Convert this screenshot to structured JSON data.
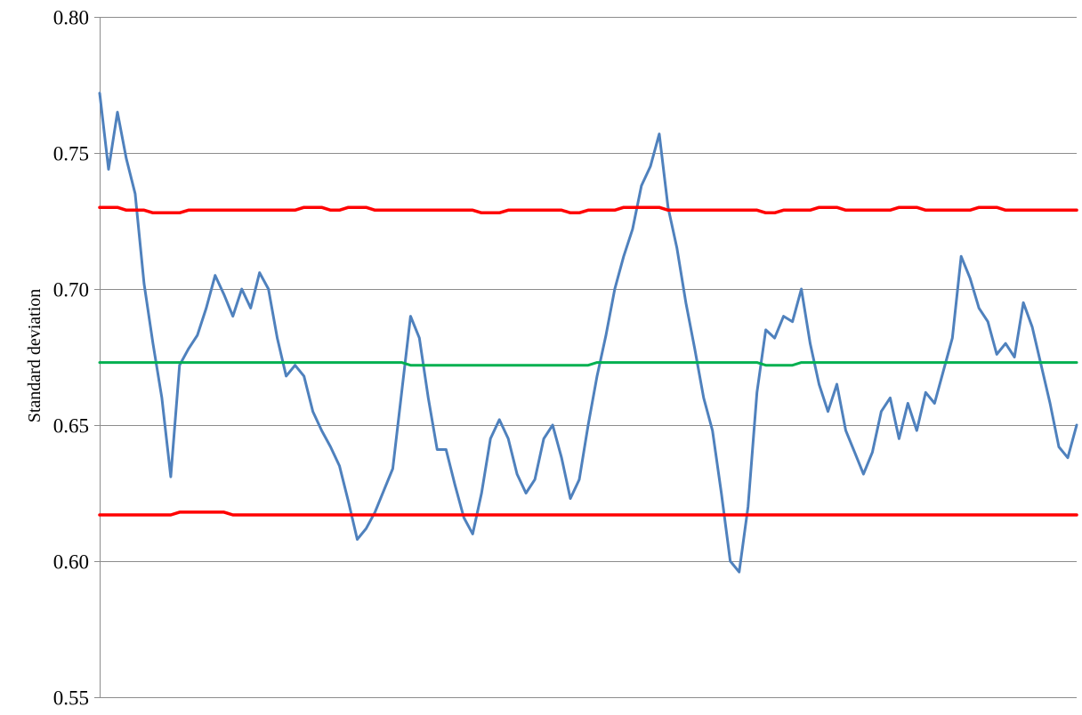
{
  "chart_data": {
    "type": "line",
    "title": "",
    "xlabel": "",
    "ylabel": "Standard deviation",
    "ylim": [
      0.55,
      0.8
    ],
    "yticks": [
      "0.80",
      "0.75",
      "0.70",
      "0.65",
      "0.60",
      "0.55"
    ],
    "grid": "horizontal",
    "legend": "none",
    "x": [
      0,
      10,
      20,
      30,
      40,
      50,
      60,
      70,
      80,
      90,
      100,
      110,
      120,
      130,
      140,
      150,
      160,
      170,
      180,
      190,
      200,
      210,
      220,
      230,
      240,
      250,
      260,
      270,
      280,
      290,
      300,
      310,
      320,
      330,
      340,
      350,
      360,
      370,
      380,
      390,
      400,
      410,
      420,
      430,
      440,
      450,
      460,
      470,
      480,
      490,
      500,
      510,
      520,
      530,
      540,
      550,
      560,
      570,
      580,
      590,
      600,
      610,
      620,
      630,
      640,
      650,
      660,
      670,
      680,
      690,
      700,
      710,
      720,
      730,
      740,
      750,
      760,
      770,
      780,
      790,
      800,
      810,
      820,
      830,
      840,
      850,
      860,
      870,
      880,
      890,
      900,
      910,
      920,
      930,
      940,
      950,
      960,
      970,
      980,
      990,
      1000,
      1010,
      1020,
      1030,
      1040,
      1050,
      1060,
      1070,
      1080,
      1090,
      1100
    ],
    "series": [
      {
        "color": "#4f81bd",
        "values": [
          0.772,
          0.744,
          0.765,
          0.748,
          0.735,
          0.702,
          0.68,
          0.66,
          0.631,
          0.672,
          0.678,
          0.683,
          0.693,
          0.705,
          0.698,
          0.69,
          0.7,
          0.693,
          0.706,
          0.7,
          0.682,
          0.668,
          0.672,
          0.668,
          0.655,
          0.648,
          0.642,
          0.635,
          0.622,
          0.608,
          0.612,
          0.618,
          0.626,
          0.634,
          0.662,
          0.69,
          0.682,
          0.66,
          0.641,
          0.641,
          0.628,
          0.616,
          0.61,
          0.625,
          0.645,
          0.652,
          0.645,
          0.632,
          0.625,
          0.63,
          0.645,
          0.65,
          0.638,
          0.623,
          0.63,
          0.65,
          0.668,
          0.683,
          0.7,
          0.712,
          0.722,
          0.738,
          0.745,
          0.757,
          0.73,
          0.715,
          0.695,
          0.678,
          0.66,
          0.648,
          0.625,
          0.6,
          0.596,
          0.62,
          0.662,
          0.685,
          0.682,
          0.69,
          0.688,
          0.7,
          0.68,
          0.665,
          0.655,
          0.665,
          0.648,
          0.64,
          0.632,
          0.64,
          0.655,
          0.66,
          0.645,
          0.658,
          0.648,
          0.662,
          0.658,
          0.67,
          0.682,
          0.712,
          0.704,
          0.693,
          0.688,
          0.676,
          0.68,
          0.675,
          0.695,
          0.686,
          0.672,
          0.658,
          0.642,
          0.638,
          0.65
        ]
      },
      {
        "color": "#ff0000",
        "values": [
          0.73,
          0.73,
          0.73,
          0.729,
          0.729,
          0.729,
          0.728,
          0.728,
          0.728,
          0.728,
          0.729,
          0.729,
          0.729,
          0.729,
          0.729,
          0.729,
          0.729,
          0.729,
          0.729,
          0.729,
          0.729,
          0.729,
          0.729,
          0.73,
          0.73,
          0.73,
          0.729,
          0.729,
          0.73,
          0.73,
          0.73,
          0.729,
          0.729,
          0.729,
          0.729,
          0.729,
          0.729,
          0.729,
          0.729,
          0.729,
          0.729,
          0.729,
          0.729,
          0.728,
          0.728,
          0.728,
          0.729,
          0.729,
          0.729,
          0.729,
          0.729,
          0.729,
          0.729,
          0.728,
          0.728,
          0.729,
          0.729,
          0.729,
          0.729,
          0.73,
          0.73,
          0.73,
          0.73,
          0.73,
          0.729,
          0.729,
          0.729,
          0.729,
          0.729,
          0.729,
          0.729,
          0.729,
          0.729,
          0.729,
          0.729,
          0.728,
          0.728,
          0.729,
          0.729,
          0.729,
          0.729,
          0.73,
          0.73,
          0.73,
          0.729,
          0.729,
          0.729,
          0.729,
          0.729,
          0.729,
          0.73,
          0.73,
          0.73,
          0.729,
          0.729,
          0.729,
          0.729,
          0.729,
          0.729,
          0.73,
          0.73,
          0.73,
          0.729,
          0.729,
          0.729,
          0.729,
          0.729,
          0.729,
          0.729,
          0.729,
          0.729
        ]
      },
      {
        "color": "#00b050",
        "values": [
          0.673,
          0.673,
          0.673,
          0.673,
          0.673,
          0.673,
          0.673,
          0.673,
          0.673,
          0.673,
          0.673,
          0.673,
          0.673,
          0.673,
          0.673,
          0.673,
          0.673,
          0.673,
          0.673,
          0.673,
          0.673,
          0.673,
          0.673,
          0.673,
          0.673,
          0.673,
          0.673,
          0.673,
          0.673,
          0.673,
          0.673,
          0.673,
          0.673,
          0.673,
          0.673,
          0.672,
          0.672,
          0.672,
          0.672,
          0.672,
          0.672,
          0.672,
          0.672,
          0.672,
          0.672,
          0.672,
          0.672,
          0.672,
          0.672,
          0.672,
          0.672,
          0.672,
          0.672,
          0.672,
          0.672,
          0.672,
          0.673,
          0.673,
          0.673,
          0.673,
          0.673,
          0.673,
          0.673,
          0.673,
          0.673,
          0.673,
          0.673,
          0.673,
          0.673,
          0.673,
          0.673,
          0.673,
          0.673,
          0.673,
          0.673,
          0.672,
          0.672,
          0.672,
          0.672,
          0.673,
          0.673,
          0.673,
          0.673,
          0.673,
          0.673,
          0.673,
          0.673,
          0.673,
          0.673,
          0.673,
          0.673,
          0.673,
          0.673,
          0.673,
          0.673,
          0.673,
          0.673,
          0.673,
          0.673,
          0.673,
          0.673,
          0.673,
          0.673,
          0.673,
          0.673,
          0.673,
          0.673,
          0.673,
          0.673,
          0.673,
          0.673
        ]
      },
      {
        "color": "#ff0000",
        "values": [
          0.617,
          0.617,
          0.617,
          0.617,
          0.617,
          0.617,
          0.617,
          0.617,
          0.617,
          0.618,
          0.618,
          0.618,
          0.618,
          0.618,
          0.618,
          0.617,
          0.617,
          0.617,
          0.617,
          0.617,
          0.617,
          0.617,
          0.617,
          0.617,
          0.617,
          0.617,
          0.617,
          0.617,
          0.617,
          0.617,
          0.617,
          0.617,
          0.617,
          0.617,
          0.617,
          0.617,
          0.617,
          0.617,
          0.617,
          0.617,
          0.617,
          0.617,
          0.617,
          0.617,
          0.617,
          0.617,
          0.617,
          0.617,
          0.617,
          0.617,
          0.617,
          0.617,
          0.617,
          0.617,
          0.617,
          0.617,
          0.617,
          0.617,
          0.617,
          0.617,
          0.617,
          0.617,
          0.617,
          0.617,
          0.617,
          0.617,
          0.617,
          0.617,
          0.617,
          0.617,
          0.617,
          0.617,
          0.617,
          0.617,
          0.617,
          0.617,
          0.617,
          0.617,
          0.617,
          0.617,
          0.617,
          0.617,
          0.617,
          0.617,
          0.617,
          0.617,
          0.617,
          0.617,
          0.617,
          0.617,
          0.617,
          0.617,
          0.617,
          0.617,
          0.617,
          0.617,
          0.617,
          0.617,
          0.617,
          0.617,
          0.617,
          0.617,
          0.617,
          0.617,
          0.617,
          0.617,
          0.617,
          0.617,
          0.617,
          0.617,
          0.617
        ]
      }
    ]
  }
}
